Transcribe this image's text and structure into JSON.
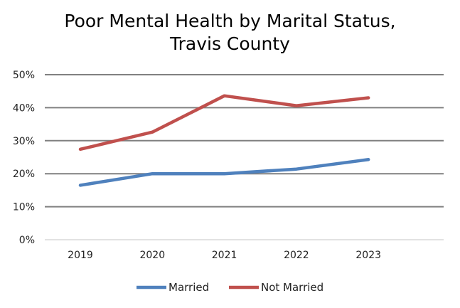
{
  "chart_data": {
    "type": "line",
    "title_lines": [
      "Poor Mental Health by Marital Status,",
      "Travis County"
    ],
    "categories": [
      "2019",
      "2020",
      "2021",
      "2022",
      "2023"
    ],
    "y_ticks": [
      "0%",
      "10%",
      "20%",
      "30%",
      "40%",
      "50%"
    ],
    "ylim": [
      0,
      50
    ],
    "grid": true,
    "legend_position": "bottom",
    "series": [
      {
        "name": "Married",
        "color": "#4f81bd",
        "values": [
          16.5,
          20.0,
          20.0,
          21.4,
          24.3
        ]
      },
      {
        "name": "Not Married",
        "color": "#c0504d",
        "values": [
          27.4,
          32.6,
          43.6,
          40.6,
          43.0
        ]
      }
    ]
  }
}
